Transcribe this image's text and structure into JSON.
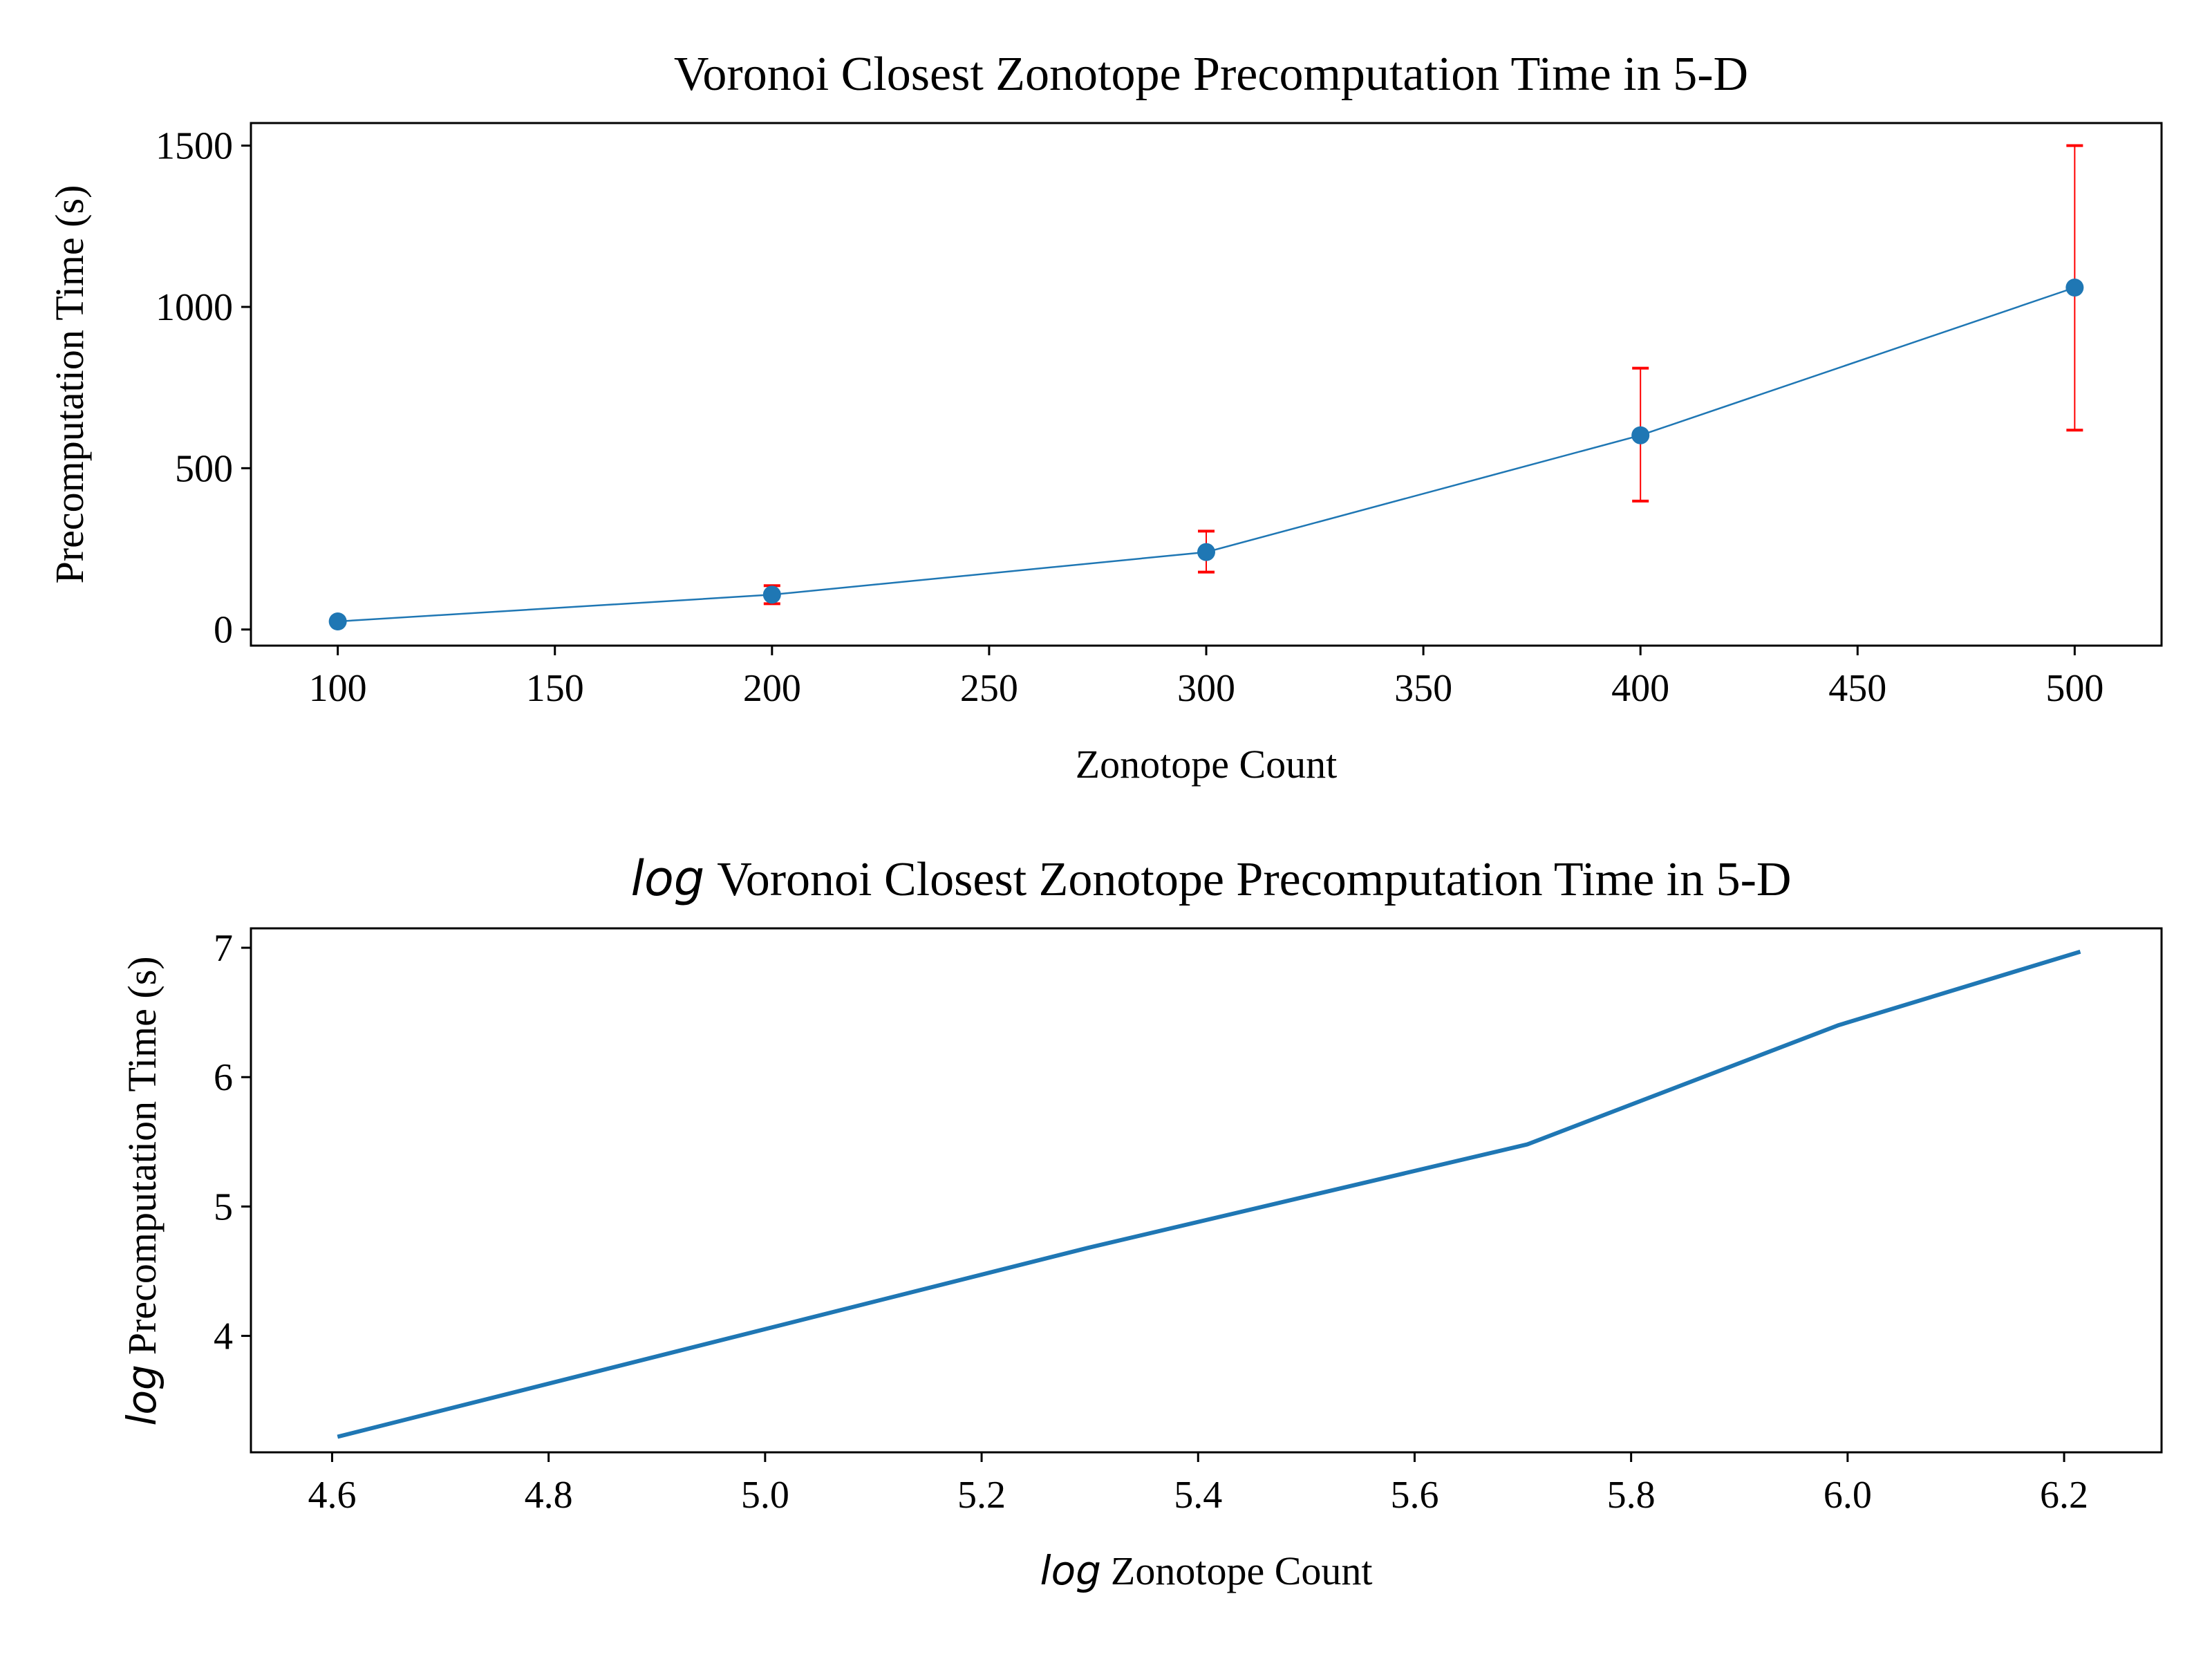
{
  "chart_data": [
    {
      "type": "line",
      "title": "Voronoi Closest Zonotope Precomputation Time in 5-D",
      "xlabel": "Zonotope Count",
      "ylabel": "Precomputation Time (s)",
      "xlim": [
        80,
        520
      ],
      "ylim": [
        -50,
        1570
      ],
      "x_ticks": [
        "100",
        "150",
        "200",
        "250",
        "300",
        "350",
        "400",
        "450",
        "500"
      ],
      "y_ticks": [
        "0",
        "500",
        "1000",
        "1500"
      ],
      "grid": false,
      "series": [
        {
          "x": [
            100,
            200,
            300,
            400,
            500
          ],
          "y": [
            25,
            108,
            240,
            602,
            1060
          ],
          "error_low": [
            25,
            80,
            178,
            398,
            618
          ],
          "error_high": [
            25,
            136,
            305,
            810,
            1500
          ],
          "line_color": "#1f77b4",
          "marker_color": "#1f77b4",
          "error_color": "#ff0000"
        }
      ]
    },
    {
      "type": "line",
      "title_prefix": "log",
      "title": "Voronoi Closest Zonotope Precomputation Time in 5-D",
      "xlabel_prefix": "log",
      "xlabel": "Zonotope Count",
      "ylabel_prefix": "log",
      "ylabel": "Precomputation Time (s)",
      "xlim": [
        4.525,
        6.29
      ],
      "ylim": [
        3.1,
        7.15
      ],
      "x_ticks": [
        "4.6",
        "4.8",
        "5.0",
        "5.2",
        "5.4",
        "5.6",
        "5.8",
        "6.0",
        "6.2"
      ],
      "y_ticks": [
        "4",
        "5",
        "6",
        "7"
      ],
      "grid": false,
      "series": [
        {
          "x": [
            4.605,
            5.298,
            5.704,
            5.991,
            6.215
          ],
          "y": [
            3.22,
            4.68,
            5.48,
            6.4,
            6.97
          ],
          "line_color": "#1f77b4"
        }
      ]
    }
  ]
}
